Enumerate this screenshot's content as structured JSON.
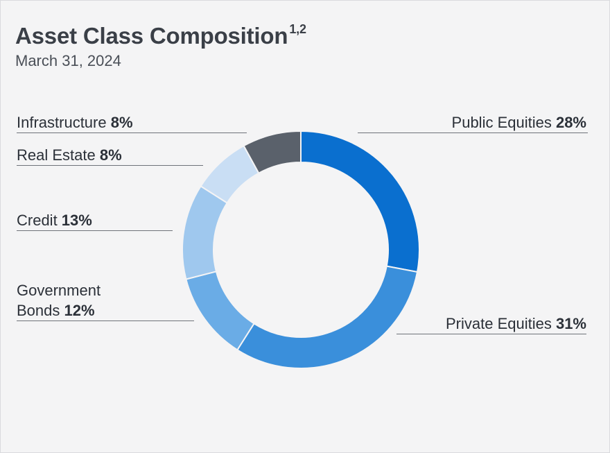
{
  "title": "Asset Class Composition",
  "title_superscript": "1,2",
  "subtitle": "March 31, 2024",
  "chart_data": {
    "type": "pie",
    "title": "Asset Class Composition",
    "subtitle": "March 31, 2024",
    "categories": [
      "Public Equities",
      "Private Equities",
      "Government Bonds",
      "Credit",
      "Real Estate",
      "Infrastructure"
    ],
    "values": [
      28,
      31,
      12,
      13,
      8,
      8
    ],
    "labels": [
      "28%",
      "31%",
      "12%",
      "13%",
      "8%",
      "8%"
    ],
    "colors": [
      "#0a6fcf",
      "#3a8fdb",
      "#6aace6",
      "#9fc8ee",
      "#c9def4",
      "#5a616b"
    ]
  }
}
